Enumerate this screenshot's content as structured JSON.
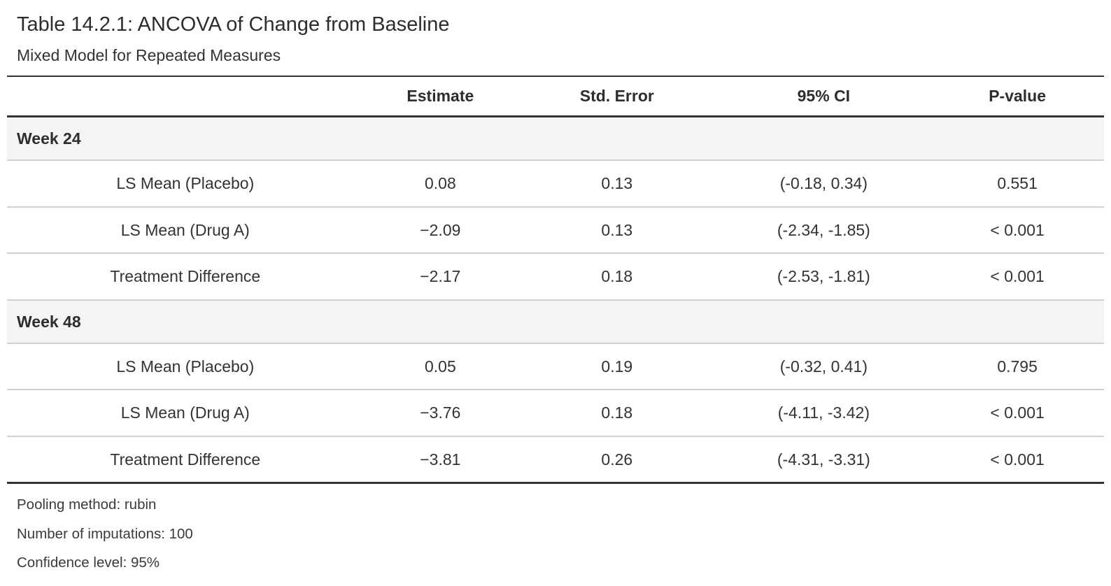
{
  "table": {
    "title": "Table 14.2.1: ANCOVA of Change from Baseline",
    "subtitle": "Mixed Model for Repeated Measures",
    "columns": {
      "stub": "",
      "estimate": "Estimate",
      "std_error": "Std. Error",
      "ci": "95% CI",
      "p_value": "P-value"
    },
    "groups": [
      {
        "label": "Week 24",
        "rows": [
          {
            "label": "LS Mean (Placebo)",
            "estimate": "0.08",
            "std_error": "0.13",
            "ci": "(-0.18, 0.34)",
            "p_value": "0.551"
          },
          {
            "label": "LS Mean (Drug A)",
            "estimate": "−2.09",
            "std_error": "0.13",
            "ci": "(-2.34, -1.85)",
            "p_value": "< 0.001"
          },
          {
            "label": "Treatment Difference",
            "estimate": "−2.17",
            "std_error": "0.18",
            "ci": "(-2.53, -1.81)",
            "p_value": "< 0.001"
          }
        ]
      },
      {
        "label": "Week 48",
        "rows": [
          {
            "label": "LS Mean (Placebo)",
            "estimate": "0.05",
            "std_error": "0.19",
            "ci": "(-0.32, 0.41)",
            "p_value": "0.795"
          },
          {
            "label": "LS Mean (Drug A)",
            "estimate": "−3.76",
            "std_error": "0.18",
            "ci": "(-4.11, -3.42)",
            "p_value": "< 0.001"
          },
          {
            "label": "Treatment Difference",
            "estimate": "−3.81",
            "std_error": "0.26",
            "ci": "(-4.31, -3.31)",
            "p_value": "< 0.001"
          }
        ]
      }
    ],
    "footnotes": [
      "Pooling method: rubin",
      "Number of imputations: 100",
      "Confidence level: 95%"
    ],
    "colors": {
      "text": "#333333",
      "heavy_border": "#333333",
      "light_border": "#d0d0d0",
      "group_row_background": "#f4f4f4",
      "page_background": "#ffffff"
    }
  }
}
